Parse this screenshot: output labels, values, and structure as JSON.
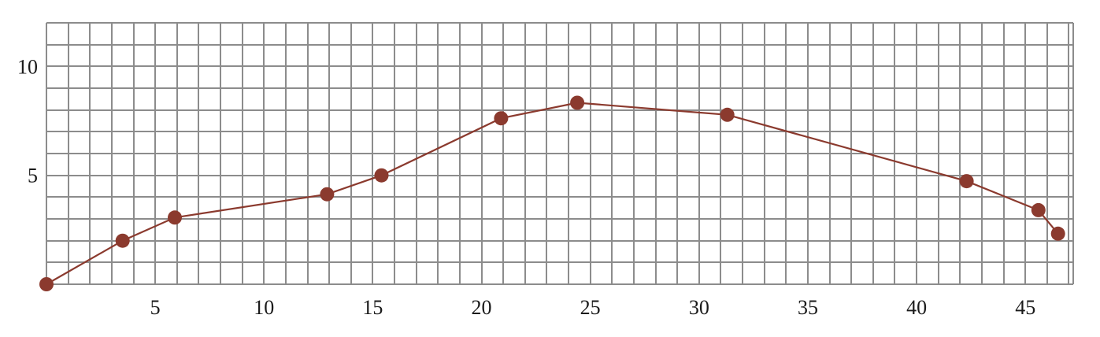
{
  "chart_data": {
    "type": "line",
    "title": "",
    "xlabel": "",
    "ylabel": "",
    "xlim": [
      0,
      47.2
    ],
    "ylim": [
      0,
      12
    ],
    "grid": true,
    "grid_step_x": 1,
    "grid_step_y": 1,
    "x_ticks": [
      5,
      10,
      15,
      20,
      25,
      30,
      35,
      40,
      45
    ],
    "y_ticks": [
      5,
      10
    ],
    "x_tick_labels": [
      "5",
      "10",
      "15",
      "20",
      "25",
      "30",
      "35",
      "40",
      "45"
    ],
    "y_tick_labels": [
      "5",
      "10"
    ],
    "series": [
      {
        "color": "#8b3a2e",
        "marker": "circle",
        "x": [
          0.0,
          3.5,
          5.9,
          12.9,
          15.4,
          20.9,
          24.4,
          31.3,
          42.3,
          45.6,
          46.5
        ],
        "y": [
          0.0,
          2.0,
          3.06,
          4.13,
          5.0,
          7.62,
          8.33,
          7.78,
          4.73,
          3.4,
          2.32
        ]
      }
    ]
  },
  "colors": {
    "grid": "#8c8c8c",
    "series": "#8b3a2e",
    "text": "#1a1a1a",
    "background": "#ffffff"
  }
}
